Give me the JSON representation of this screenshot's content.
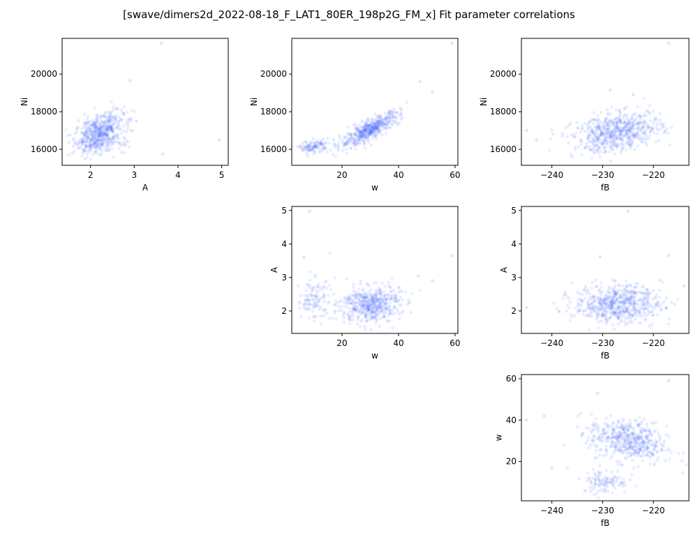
{
  "figure": {
    "title": "[swave/dimers2d_2022-08-18_F_LAT1_80ER_198p2G_FM_x] Fit parameter correlations"
  },
  "colors": {
    "point": "#4d6bff",
    "axes": "#000000",
    "background": "#ffffff"
  },
  "chart_data": [
    {
      "id": "A-vs-Ni",
      "type": "scatter",
      "title": "",
      "xlabel": "A",
      "ylabel": "Ni",
      "xlim": [
        1.35,
        5.15
      ],
      "ylim": [
        15150,
        21900
      ],
      "xticks": [
        2,
        3,
        4,
        5
      ],
      "yticks": [
        16000,
        18000,
        20000
      ],
      "points_description": "dense cluster near A 1.7–2.7, Ni 16000–17800; outliers near (3.6, 21650), (4.95, 16500), (3.6, 15750)",
      "clusters": [
        {
          "x": 2.2,
          "y": 16900,
          "sx": 0.28,
          "sy": 520,
          "r": 0.45,
          "n": 520
        },
        {
          "x": 2.35,
          "y": 16250,
          "sx": 0.3,
          "sy": 250,
          "r": 0.0,
          "n": 70
        }
      ],
      "outliers": [
        [
          3.62,
          21650
        ],
        [
          4.95,
          16500
        ],
        [
          3.65,
          15750
        ],
        [
          3.05,
          17500
        ],
        [
          2.9,
          19650
        ]
      ]
    },
    {
      "id": "w-vs-Ni",
      "type": "scatter",
      "title": "",
      "xlabel": "w",
      "ylabel": "Ni",
      "xlim": [
        2.2,
        61.0
      ],
      "ylim": [
        15150,
        21900
      ],
      "xticks": [
        20,
        40,
        60
      ],
      "yticks": [
        16000,
        18000,
        20000
      ],
      "points_description": "main cluster w 20–45 with Ni rising 16500–18500; secondary cluster w 5–15 at Ni ~16000; outlier near (59, 21650)",
      "clusters": [
        {
          "x": 30,
          "y": 17050,
          "sx": 5.2,
          "sy": 480,
          "r": 0.85,
          "n": 500
        },
        {
          "x": 10,
          "y": 16150,
          "sx": 2.6,
          "sy": 170,
          "r": 0.3,
          "n": 110
        }
      ],
      "outliers": [
        [
          59,
          21650
        ],
        [
          52,
          19050
        ],
        [
          47.5,
          19600
        ],
        [
          17,
          16500
        ]
      ]
    },
    {
      "id": "fB-vs-Ni",
      "type": "scatter",
      "title": "",
      "xlabel": "fB",
      "ylabel": "Ni",
      "xlim": [
        -246.0,
        -213.0
      ],
      "ylim": [
        15150,
        21900
      ],
      "xticks": [
        -240,
        -230,
        -220
      ],
      "yticks": [
        16000,
        18000,
        20000
      ],
      "points_description": "broad cloud fB -238 to -215, Ni 15800–18000; outlier near (-217, 21650)",
      "clusters": [
        {
          "x": -227,
          "y": 16900,
          "sx": 4.3,
          "sy": 520,
          "r": 0.3,
          "n": 610
        }
      ],
      "outliers": [
        [
          -217,
          21650
        ],
        [
          -245,
          17000
        ],
        [
          -243,
          16500
        ],
        [
          -228.5,
          19150
        ],
        [
          -224,
          18900
        ]
      ]
    },
    {
      "id": "w-vs-A",
      "type": "scatter",
      "title": "",
      "xlabel": "w",
      "ylabel": "A",
      "xlim": [
        2.2,
        61.0
      ],
      "ylim": [
        1.33,
        5.12
      ],
      "xticks": [
        20,
        40,
        60
      ],
      "yticks": [
        2,
        3,
        4,
        5
      ],
      "points_description": "main cluster w 20–45, A 1.7–2.8; secondary cluster w 5–18, A 1.8–3.0; outliers near (8, 4.97), (59, 3.65), (6, 3.6)",
      "clusters": [
        {
          "x": 30,
          "y": 2.2,
          "sx": 5.3,
          "sy": 0.27,
          "r": 0.1,
          "n": 500
        },
        {
          "x": 10,
          "y": 2.35,
          "sx": 3.0,
          "sy": 0.32,
          "r": 0.0,
          "n": 110
        }
      ],
      "outliers": [
        [
          8.5,
          4.97
        ],
        [
          59,
          3.65
        ],
        [
          6.5,
          3.6
        ],
        [
          52,
          2.9
        ],
        [
          47,
          3.05
        ]
      ]
    },
    {
      "id": "fB-vs-A",
      "type": "scatter",
      "title": "",
      "xlabel": "fB",
      "ylabel": "A",
      "xlim": [
        -246.0,
        -213.0
      ],
      "ylim": [
        1.33,
        5.12
      ],
      "xticks": [
        -240,
        -230,
        -220
      ],
      "yticks": [
        2,
        3,
        4,
        5
      ],
      "points_description": "broad cloud fB -238 to -215, A 1.6–3.0; outliers near (-225, 4.97), (-230, 3.62)",
      "clusters": [
        {
          "x": -227,
          "y": 2.22,
          "sx": 4.3,
          "sy": 0.28,
          "r": 0.05,
          "n": 610
        }
      ],
      "outliers": [
        [
          -225,
          4.97
        ],
        [
          -230.5,
          3.62
        ],
        [
          -217,
          3.65
        ],
        [
          -245,
          2.1
        ],
        [
          -214,
          2.75
        ]
      ]
    },
    {
      "id": "fB-vs-w",
      "type": "scatter",
      "title": "",
      "xlabel": "fB",
      "ylabel": "w",
      "xlim": [
        -246.0,
        -213.0
      ],
      "ylim": [
        1.0,
        62.0
      ],
      "xticks": [
        -240,
        -230,
        -220
      ],
      "yticks": [
        20,
        40,
        60
      ],
      "points_description": "main cluster fB -233 to -215, w 20–45; secondary cluster fB -235 to -225, w 5–18; outlier near (-217, 59)",
      "clusters": [
        {
          "x": -225,
          "y": 30,
          "sx": 3.8,
          "sy": 5.3,
          "r": -0.3,
          "n": 500
        },
        {
          "x": -229.5,
          "y": 10.5,
          "sx": 2.2,
          "sy": 3.0,
          "r": 0.0,
          "n": 110
        }
      ],
      "outliers": [
        [
          -217,
          59
        ],
        [
          -245,
          40
        ],
        [
          -241.5,
          42
        ],
        [
          -240,
          17
        ],
        [
          -231,
          53
        ]
      ]
    }
  ]
}
